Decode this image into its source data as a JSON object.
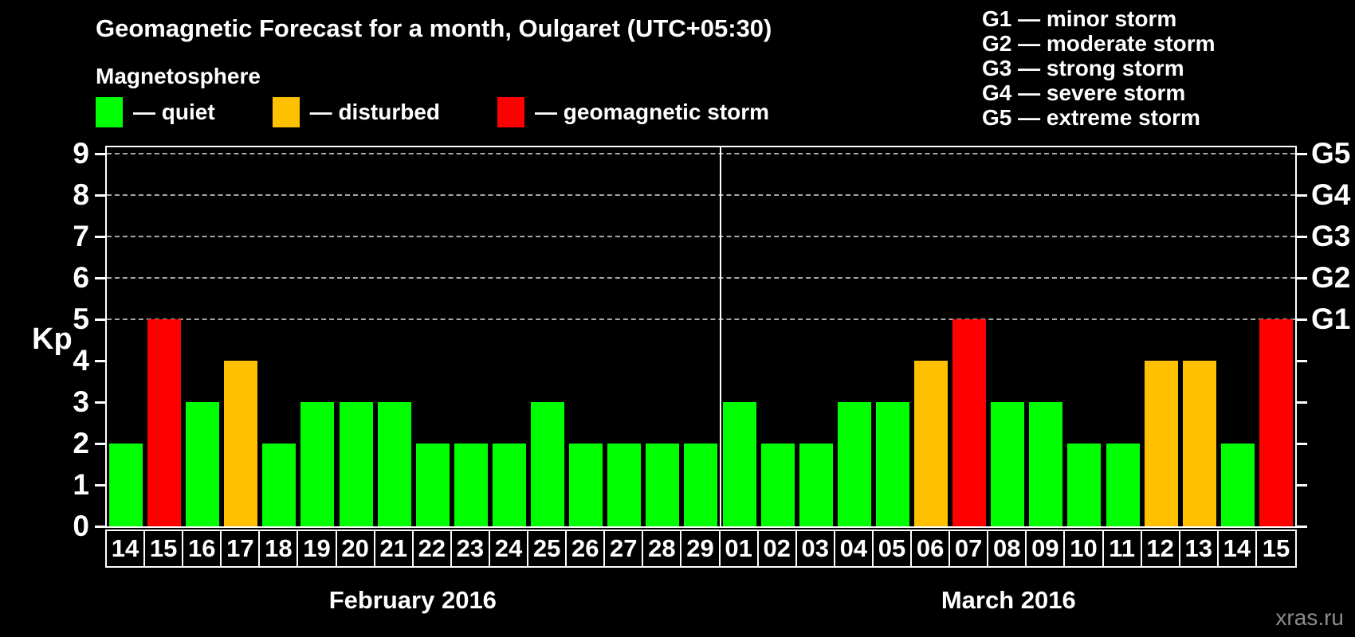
{
  "title": "Geomagnetic Forecast for a month, Oulgaret (UTC+05:30)",
  "subtitle": "Magnetosphere",
  "legend": [
    {
      "key": "quiet",
      "label": "— quiet",
      "color": "#00ff00"
    },
    {
      "key": "disturbed",
      "label": "— disturbed",
      "color": "#ffc000"
    },
    {
      "key": "storm",
      "label": "— geomagnetic storm",
      "color": "#ff0000"
    }
  ],
  "storm_scale": [
    "G1 — minor storm",
    "G2 — moderate storm",
    "G3 — strong storm",
    "G4 — severe storm",
    "G5 — extreme storm"
  ],
  "watermark": "xras.ru",
  "chart_data": {
    "type": "bar",
    "ylabel": "Kp",
    "ylim": [
      0,
      9
    ],
    "yticks": [
      0,
      1,
      2,
      3,
      4,
      5,
      6,
      7,
      8,
      9
    ],
    "gridlines_at": [
      5,
      6,
      7,
      8,
      9
    ],
    "right_axis": [
      {
        "kp": 5,
        "label": "G1"
      },
      {
        "kp": 6,
        "label": "G2"
      },
      {
        "kp": 7,
        "label": "G3"
      },
      {
        "kp": 8,
        "label": "G4"
      },
      {
        "kp": 9,
        "label": "G5"
      }
    ],
    "colors": {
      "quiet": "#00ff00",
      "disturbed": "#ffc000",
      "storm": "#ff0000"
    },
    "grid": true,
    "legend_position": "top-left",
    "months": [
      {
        "label": "February 2016",
        "days": [
          {
            "date": "14",
            "kp": 2,
            "status": "quiet"
          },
          {
            "date": "15",
            "kp": 5,
            "status": "storm"
          },
          {
            "date": "16",
            "kp": 3,
            "status": "quiet"
          },
          {
            "date": "17",
            "kp": 4,
            "status": "disturbed"
          },
          {
            "date": "18",
            "kp": 2,
            "status": "quiet"
          },
          {
            "date": "19",
            "kp": 3,
            "status": "quiet"
          },
          {
            "date": "20",
            "kp": 3,
            "status": "quiet"
          },
          {
            "date": "21",
            "kp": 3,
            "status": "quiet"
          },
          {
            "date": "22",
            "kp": 2,
            "status": "quiet"
          },
          {
            "date": "23",
            "kp": 2,
            "status": "quiet"
          },
          {
            "date": "24",
            "kp": 2,
            "status": "quiet"
          },
          {
            "date": "25",
            "kp": 3,
            "status": "quiet"
          },
          {
            "date": "26",
            "kp": 2,
            "status": "quiet"
          },
          {
            "date": "27",
            "kp": 2,
            "status": "quiet"
          },
          {
            "date": "28",
            "kp": 2,
            "status": "quiet"
          },
          {
            "date": "29",
            "kp": 2,
            "status": "quiet"
          }
        ]
      },
      {
        "label": "March 2016",
        "days": [
          {
            "date": "01",
            "kp": 3,
            "status": "quiet"
          },
          {
            "date": "02",
            "kp": 2,
            "status": "quiet"
          },
          {
            "date": "03",
            "kp": 2,
            "status": "quiet"
          },
          {
            "date": "04",
            "kp": 3,
            "status": "quiet"
          },
          {
            "date": "05",
            "kp": 3,
            "status": "quiet"
          },
          {
            "date": "06",
            "kp": 4,
            "status": "disturbed"
          },
          {
            "date": "07",
            "kp": 5,
            "status": "storm"
          },
          {
            "date": "08",
            "kp": 3,
            "status": "quiet"
          },
          {
            "date": "09",
            "kp": 3,
            "status": "quiet"
          },
          {
            "date": "10",
            "kp": 2,
            "status": "quiet"
          },
          {
            "date": "11",
            "kp": 2,
            "status": "quiet"
          },
          {
            "date": "12",
            "kp": 4,
            "status": "disturbed"
          },
          {
            "date": "13",
            "kp": 4,
            "status": "disturbed"
          },
          {
            "date": "14",
            "kp": 2,
            "status": "quiet"
          },
          {
            "date": "15",
            "kp": 5,
            "status": "storm"
          }
        ]
      }
    ]
  }
}
